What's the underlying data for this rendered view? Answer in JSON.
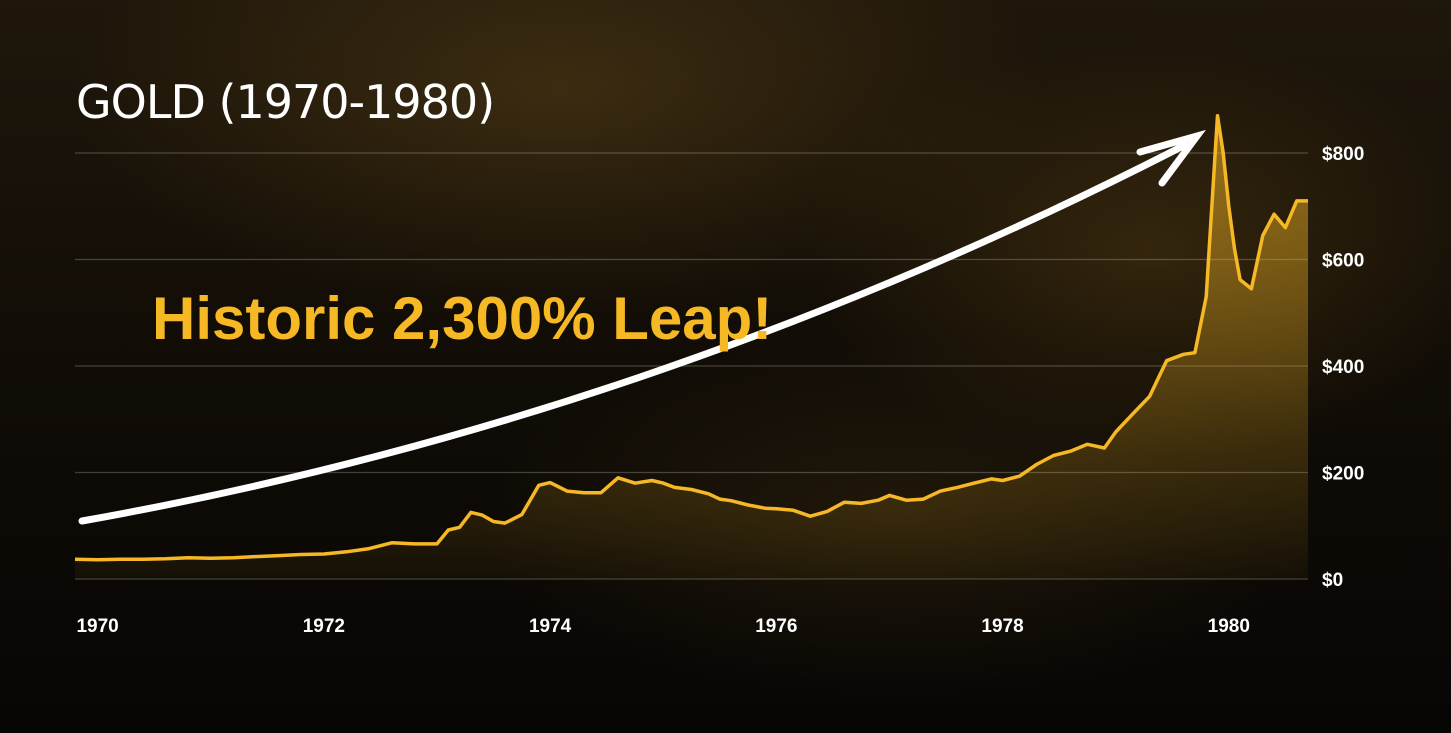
{
  "chart_data": {
    "type": "area",
    "title": "GOLD (1970-1980)",
    "annotation": "Historic 2,300% Leap!",
    "xlabel": "",
    "ylabel": "",
    "x_ticks": [
      "1970",
      "1972",
      "1974",
      "1976",
      "1978",
      "1980"
    ],
    "y_ticks": [
      "$0",
      "$200",
      "$400",
      "$600",
      "$800"
    ],
    "xlim": [
      1969.8,
      1980.7
    ],
    "ylim": [
      0,
      800
    ],
    "grid": true,
    "colors": {
      "line": "#f6b824",
      "fill": "#f6b824",
      "arrow": "#ffffff"
    },
    "series": [
      {
        "x": [
          1969.8,
          1970.0,
          1970.2,
          1970.4,
          1970.6,
          1970.8,
          1971.0,
          1971.2,
          1971.4,
          1971.6,
          1971.8,
          1972.0,
          1972.2,
          1972.4,
          1972.6,
          1972.8,
          1973.0,
          1973.1,
          1973.2,
          1973.3,
          1973.4,
          1973.5,
          1973.6,
          1973.75,
          1973.9,
          1974.0,
          1974.15,
          1974.3,
          1974.45,
          1974.6,
          1974.75,
          1974.9,
          1975.0,
          1975.1,
          1975.25,
          1975.4,
          1975.5,
          1975.6,
          1975.75,
          1975.9,
          1976.0,
          1976.15,
          1976.3,
          1976.45,
          1976.6,
          1976.75,
          1976.9,
          1977.0,
          1977.15,
          1977.3,
          1977.45,
          1977.6,
          1977.75,
          1977.9,
          1978.0,
          1978.15,
          1978.3,
          1978.45,
          1978.6,
          1978.75,
          1978.9,
          1979.0,
          1979.15,
          1979.3,
          1979.45,
          1979.6,
          1979.7,
          1979.8,
          1979.9,
          1979.95,
          1980.0,
          1980.05,
          1980.1,
          1980.2,
          1980.3,
          1980.4,
          1980.5,
          1980.6,
          1980.7
        ],
        "values": [
          37,
          36,
          37,
          37,
          38,
          40,
          39,
          40,
          42,
          44,
          46,
          47,
          51,
          57,
          68,
          66,
          66,
          92,
          97,
          125,
          120,
          108,
          105,
          121,
          176,
          181,
          165,
          162,
          162,
          190,
          180,
          185,
          180,
          172,
          168,
          160,
          150,
          147,
          139,
          133,
          132,
          129,
          118,
          127,
          144,
          142,
          148,
          157,
          148,
          150,
          165,
          172,
          180,
          188,
          185,
          193,
          215,
          232,
          240,
          253,
          246,
          276,
          310,
          343,
          410,
          422,
          425,
          530,
          870,
          800,
          700,
          620,
          562,
          545,
          645,
          685,
          660,
          710,
          710
        ]
      }
    ]
  }
}
